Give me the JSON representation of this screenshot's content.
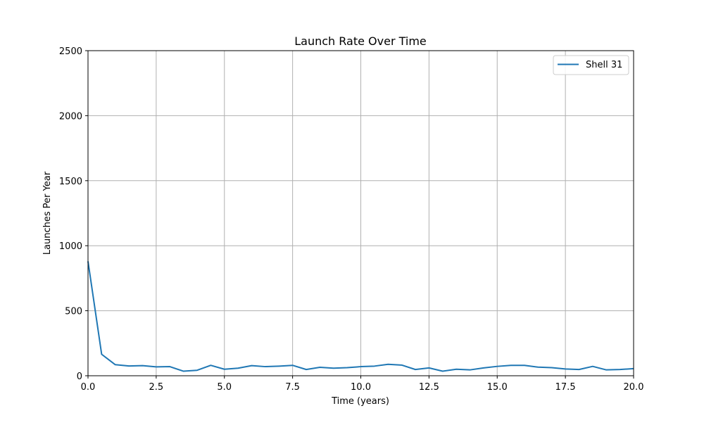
{
  "chart_data": {
    "type": "line",
    "title": "Launch Rate Over Time",
    "xlabel": "Time (years)",
    "ylabel": "Launches Per Year",
    "xlim": [
      0,
      20
    ],
    "ylim": [
      0,
      2500
    ],
    "x_ticks": [
      0,
      2.5,
      5,
      7.5,
      10,
      12.5,
      15,
      17.5,
      20
    ],
    "x_tick_labels": [
      "0.0",
      "2.5",
      "5.0",
      "7.5",
      "10.0",
      "12.5",
      "15.0",
      "17.5",
      "20.0"
    ],
    "y_ticks": [
      0,
      500,
      1000,
      1500,
      2000,
      2500
    ],
    "y_tick_labels": [
      "0",
      "500",
      "1000",
      "1500",
      "2000",
      "2500"
    ],
    "grid": true,
    "legend_position": "top-right",
    "series": [
      {
        "name": "Shell 31",
        "color": "#1f77b4",
        "x": [
          0,
          0.5,
          1.0,
          1.5,
          2.0,
          2.5,
          3.0,
          3.5,
          4.0,
          4.5,
          5.0,
          5.5,
          6.0,
          6.5,
          7.0,
          7.5,
          8.0,
          8.5,
          9.0,
          9.5,
          10.0,
          10.5,
          11.0,
          11.5,
          12.0,
          12.5,
          13.0,
          13.5,
          14.0,
          14.5,
          15.0,
          15.5,
          16.0,
          16.5,
          17.0,
          17.5,
          18.0,
          18.5,
          19.0,
          19.5,
          20.0
        ],
        "values": [
          880,
          165,
          85,
          75,
          78,
          68,
          70,
          35,
          42,
          80,
          50,
          58,
          78,
          70,
          74,
          80,
          48,
          65,
          58,
          62,
          70,
          74,
          88,
          82,
          48,
          60,
          35,
          50,
          45,
          60,
          72,
          80,
          80,
          66,
          62,
          52,
          48,
          72,
          45,
          48,
          55
        ]
      }
    ]
  }
}
